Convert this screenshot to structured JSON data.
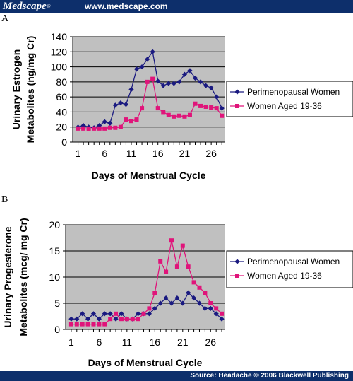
{
  "header": {
    "brand": "Medscape",
    "brand_mark": "®",
    "url": "www.medscape.com"
  },
  "footer": {
    "source": "Source: Headache © 2006 Blackwell Publishing"
  },
  "colors": {
    "header_bg": "#0d2f6b",
    "plot_bg": "#c0c0c0",
    "series_1": "#1a1a80",
    "series_2": "#e0147a"
  },
  "chart_data": [
    {
      "panel_label": "A",
      "type": "line",
      "xlabel": "Days of Menstrual Cycle",
      "ylabel_lines": [
        "Urinary Estrogen",
        "Metabolites (ng/mg Cr)"
      ],
      "x": [
        1,
        2,
        3,
        4,
        5,
        6,
        7,
        8,
        9,
        10,
        11,
        12,
        13,
        14,
        15,
        16,
        17,
        18,
        19,
        20,
        21,
        22,
        23,
        24,
        25,
        26,
        27,
        28
      ],
      "xticks": [
        1,
        6,
        11,
        16,
        21,
        26
      ],
      "yticks": [
        0,
        20,
        40,
        60,
        80,
        100,
        120,
        140
      ],
      "ylim": [
        0,
        140
      ],
      "xlim": [
        0,
        28.5
      ],
      "grid": true,
      "legend_position": "right",
      "series": [
        {
          "name": "Perimenopausal Women",
          "marker": "diamond",
          "values": [
            20,
            22,
            20,
            19,
            22,
            27,
            25,
            49,
            52,
            50,
            70,
            97,
            100,
            110,
            120,
            81,
            75,
            78,
            78,
            80,
            90,
            95,
            85,
            80,
            75,
            72,
            60,
            45
          ]
        },
        {
          "name": "Women Aged 19-36",
          "marker": "square",
          "values": [
            18,
            18,
            17,
            18,
            18,
            18,
            19,
            19,
            20,
            30,
            28,
            30,
            45,
            80,
            84,
            45,
            40,
            36,
            34,
            35,
            34,
            36,
            51,
            48,
            47,
            46,
            45,
            35
          ]
        }
      ]
    },
    {
      "panel_label": "B",
      "type": "line",
      "xlabel": "Days of Menstrual Cycle",
      "ylabel_lines": [
        "Urinary Progesterone",
        "Metabolites (mcg/ mg Cr)"
      ],
      "x": [
        1,
        2,
        3,
        4,
        5,
        6,
        7,
        8,
        9,
        10,
        11,
        12,
        13,
        14,
        15,
        16,
        17,
        18,
        19,
        20,
        21,
        22,
        23,
        24,
        25,
        26,
        27,
        28
      ],
      "xticks": [
        1,
        6,
        11,
        16,
        21,
        26
      ],
      "yticks": [
        0,
        5,
        10,
        15,
        20
      ],
      "ylim": [
        0,
        20
      ],
      "xlim": [
        0,
        28.5
      ],
      "grid": true,
      "legend_position": "right",
      "series": [
        {
          "name": "Perimenopausal Women",
          "marker": "diamond",
          "values": [
            2,
            2,
            3,
            2,
            3,
            2,
            3,
            3,
            2,
            3,
            2,
            2,
            3,
            3,
            3,
            4,
            5,
            6,
            5,
            6,
            5,
            7,
            6,
            5,
            4,
            4,
            3,
            2
          ]
        },
        {
          "name": "Women Aged 19-36",
          "marker": "square",
          "values": [
            1,
            1,
            1,
            1,
            1,
            1,
            1,
            2,
            3,
            2,
            2,
            2,
            2,
            3,
            4,
            7,
            13,
            11,
            17,
            12,
            16,
            12,
            9,
            8,
            7,
            5,
            4,
            3
          ]
        }
      ]
    }
  ]
}
